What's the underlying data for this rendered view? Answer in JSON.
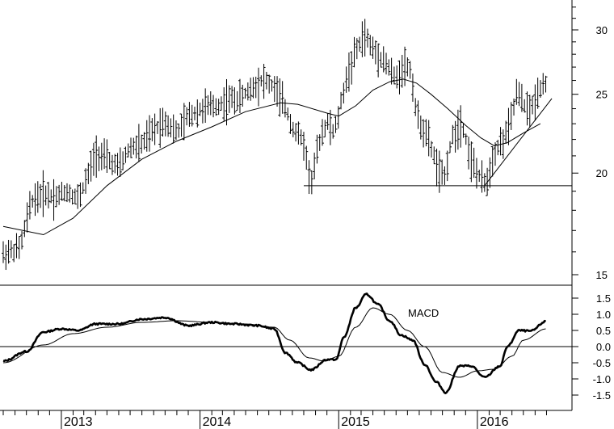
{
  "chart_data": [
    {
      "type": "ohlc",
      "panel": "price",
      "title": "",
      "xlabel": "",
      "ylabel": "",
      "scale": "log",
      "x_range": [
        "2012-08-01",
        "2016-06-30"
      ],
      "ylim": [
        14.5,
        33
      ],
      "y_ticks": [
        15,
        20,
        25,
        30
      ],
      "y_tick_labels": [
        "15",
        "20",
        "25",
        "30"
      ],
      "x_ticks": [
        "2013-01-01",
        "2014-01-01",
        "2015-01-01",
        "2016-01-01"
      ],
      "x_tick_labels": [
        "2013",
        "2014",
        "2015",
        "2016"
      ],
      "price_path": [
        [
          "2012-08-01",
          15.9
        ],
        [
          "2012-09-15",
          16.2
        ],
        [
          "2012-10-15",
          18.5
        ],
        [
          "2012-11-15",
          18.9
        ],
        [
          "2012-12-15",
          18.7
        ],
        [
          "2013-01-15",
          19.0
        ],
        [
          "2013-02-15",
          18.6
        ],
        [
          "2013-03-15",
          20.0
        ],
        [
          "2013-04-01",
          21.2
        ],
        [
          "2013-05-01",
          20.8
        ],
        [
          "2013-06-01",
          20.3
        ],
        [
          "2013-07-01",
          21.5
        ],
        [
          "2013-08-01",
          21.7
        ],
        [
          "2013-09-01",
          22.6
        ],
        [
          "2013-10-01",
          23.2
        ],
        [
          "2013-11-01",
          22.4
        ],
        [
          "2013-12-01",
          23.5
        ],
        [
          "2014-01-15",
          24.1
        ],
        [
          "2014-02-15",
          24.2
        ],
        [
          "2014-03-15",
          24.6
        ],
        [
          "2014-04-15",
          24.7
        ],
        [
          "2014-05-15",
          25.4
        ],
        [
          "2014-06-15",
          26.1
        ],
        [
          "2014-07-15",
          25.5
        ],
        [
          "2014-08-15",
          24.0
        ],
        [
          "2014-09-01",
          22.8
        ],
        [
          "2014-10-01",
          21.8
        ],
        [
          "2014-10-20",
          19.3
        ],
        [
          "2014-11-15",
          22.3
        ],
        [
          "2014-12-01",
          23.1
        ],
        [
          "2014-12-20",
          22.4
        ],
        [
          "2015-01-01",
          23.6
        ],
        [
          "2015-01-20",
          26.0
        ],
        [
          "2015-02-15",
          28.2
        ],
        [
          "2015-03-10",
          29.6
        ],
        [
          "2015-04-01",
          28.4
        ],
        [
          "2015-05-01",
          27.5
        ],
        [
          "2015-06-01",
          26.0
        ],
        [
          "2015-06-20",
          27.2
        ],
        [
          "2015-07-10",
          26.8
        ],
        [
          "2015-07-25",
          23.5
        ],
        [
          "2015-08-25",
          22.0
        ],
        [
          "2015-09-20",
          20.2
        ],
        [
          "2015-10-05",
          19.6
        ],
        [
          "2015-10-25",
          22.0
        ],
        [
          "2015-11-20",
          23.2
        ],
        [
          "2015-12-15",
          20.8
        ],
        [
          "2016-01-10",
          19.6
        ],
        [
          "2016-01-25",
          19.4
        ],
        [
          "2016-02-15",
          21.3
        ],
        [
          "2016-03-10",
          22.0
        ],
        [
          "2016-03-25",
          22.8
        ],
        [
          "2016-04-15",
          25.2
        ],
        [
          "2016-05-01",
          24.3
        ],
        [
          "2016-05-20",
          23.8
        ],
        [
          "2016-06-15",
          25.6
        ],
        [
          "2016-06-30",
          25.9
        ]
      ],
      "moving_average": [
        [
          "2012-08-01",
          17.2
        ],
        [
          "2012-11-15",
          16.8
        ],
        [
          "2013-02-01",
          17.6
        ],
        [
          "2013-05-01",
          19.3
        ],
        [
          "2013-08-01",
          20.8
        ],
        [
          "2013-11-01",
          21.9
        ],
        [
          "2014-02-01",
          22.8
        ],
        [
          "2014-05-01",
          23.8
        ],
        [
          "2014-08-01",
          24.4
        ],
        [
          "2014-09-15",
          24.3
        ],
        [
          "2014-12-01",
          23.7
        ],
        [
          "2015-01-01",
          23.5
        ],
        [
          "2015-02-15",
          24.2
        ],
        [
          "2015-04-01",
          25.3
        ],
        [
          "2015-05-15",
          25.9
        ],
        [
          "2015-06-20",
          26.1
        ],
        [
          "2015-07-25",
          25.8
        ],
        [
          "2015-09-01",
          25.0
        ],
        [
          "2015-10-15",
          24.0
        ],
        [
          "2015-12-01",
          22.9
        ],
        [
          "2016-01-10",
          22.1
        ],
        [
          "2016-02-15",
          21.6
        ],
        [
          "2016-03-20",
          21.8
        ],
        [
          "2016-05-01",
          22.4
        ],
        [
          "2016-06-15",
          23.0
        ]
      ],
      "support_line": {
        "price": 19.3,
        "from": "2014-10-01",
        "to": "2016-07-15"
      },
      "trend_line": {
        "from": [
          "2016-01-20",
          19.3
        ],
        "to": [
          "2016-07-15",
          24.7
        ]
      }
    },
    {
      "type": "line",
      "panel": "indicator",
      "annotation": "MACD",
      "xlabel": "",
      "ylabel": "",
      "ylim": [
        -1.65,
        1.75
      ],
      "y_ticks": [
        -1.5,
        -1.0,
        -0.5,
        0.0,
        0.5,
        1.0,
        1.5
      ],
      "y_tick_labels": [
        "-1.5",
        "-1.0",
        "-0.5",
        "0.0",
        "0.5",
        "1.0",
        "1.5"
      ],
      "zero_line": true,
      "series": [
        {
          "name": "",
          "style": "thick",
          "points": [
            [
              "2012-08-01",
              -0.45
            ],
            [
              "2012-10-01",
              -0.15
            ],
            [
              "2012-11-15",
              0.45
            ],
            [
              "2013-01-01",
              0.55
            ],
            [
              "2013-02-15",
              0.5
            ],
            [
              "2013-04-01",
              0.7
            ],
            [
              "2013-06-01",
              0.7
            ],
            [
              "2013-08-01",
              0.85
            ],
            [
              "2013-10-01",
              0.9
            ],
            [
              "2013-12-01",
              0.65
            ],
            [
              "2014-02-01",
              0.75
            ],
            [
              "2014-04-01",
              0.7
            ],
            [
              "2014-06-01",
              0.65
            ],
            [
              "2014-07-15",
              0.55
            ],
            [
              "2014-08-15",
              -0.2
            ],
            [
              "2014-09-15",
              -0.5
            ],
            [
              "2014-10-20",
              -0.72
            ],
            [
              "2014-12-01",
              -0.4
            ],
            [
              "2014-12-25",
              -0.4
            ],
            [
              "2015-01-15",
              0.3
            ],
            [
              "2015-02-15",
              1.2
            ],
            [
              "2015-03-15",
              1.62
            ],
            [
              "2015-04-15",
              1.3
            ],
            [
              "2015-05-15",
              0.8
            ],
            [
              "2015-06-15",
              0.35
            ],
            [
              "2015-07-15",
              0.2
            ],
            [
              "2015-08-15",
              -0.55
            ],
            [
              "2015-09-15",
              -1.1
            ],
            [
              "2015-10-10",
              -1.42
            ],
            [
              "2015-11-15",
              -0.6
            ],
            [
              "2015-12-15",
              -0.6
            ],
            [
              "2016-01-20",
              -0.95
            ],
            [
              "2016-03-01",
              -0.6
            ],
            [
              "2016-03-20",
              0.0
            ],
            [
              "2016-04-20",
              0.5
            ],
            [
              "2016-05-20",
              0.48
            ],
            [
              "2016-06-30",
              0.78
            ]
          ]
        },
        {
          "name": "",
          "style": "thin",
          "points": [
            [
              "2012-08-01",
              -0.5
            ],
            [
              "2012-11-15",
              0.05
            ],
            [
              "2013-02-01",
              0.4
            ],
            [
              "2013-05-01",
              0.6
            ],
            [
              "2013-08-01",
              0.75
            ],
            [
              "2013-11-01",
              0.8
            ],
            [
              "2014-02-01",
              0.75
            ],
            [
              "2014-05-01",
              0.7
            ],
            [
              "2014-07-15",
              0.6
            ],
            [
              "2014-08-25",
              0.2
            ],
            [
              "2014-10-15",
              -0.35
            ],
            [
              "2014-11-25",
              -0.45
            ],
            [
              "2015-01-01",
              -0.3
            ],
            [
              "2015-02-15",
              0.6
            ],
            [
              "2015-04-01",
              1.2
            ],
            [
              "2015-05-15",
              1.0
            ],
            [
              "2015-07-01",
              0.5
            ],
            [
              "2015-08-15",
              0.0
            ],
            [
              "2015-10-01",
              -0.8
            ],
            [
              "2015-11-15",
              -0.95
            ],
            [
              "2016-01-01",
              -0.75
            ],
            [
              "2016-02-15",
              -0.7
            ],
            [
              "2016-04-01",
              -0.3
            ],
            [
              "2016-05-01",
              0.2
            ],
            [
              "2016-06-30",
              0.55
            ]
          ]
        }
      ]
    }
  ]
}
